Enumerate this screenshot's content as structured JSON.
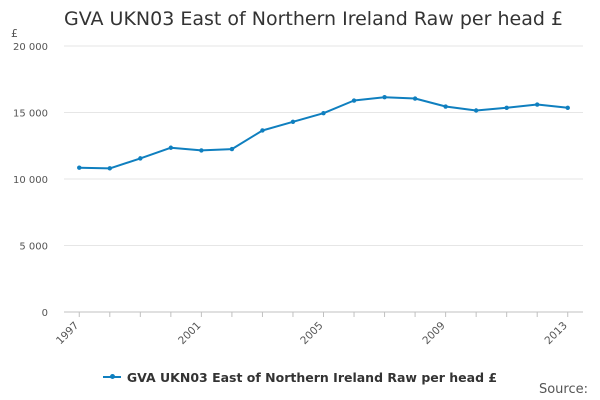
{
  "chart_data": {
    "type": "line",
    "title": "GVA UKN03 East of Northern Ireland Raw per head £",
    "ylabel": "£",
    "xlabel": "",
    "ylim": [
      0,
      20000
    ],
    "yticks": [
      0,
      5000,
      10000,
      15000,
      20000
    ],
    "ytick_labels": [
      "0",
      "5 000",
      "10 000",
      "15 000",
      "20 000"
    ],
    "xlim": [
      1997,
      2013
    ],
    "xticks": [
      1997,
      2001,
      2005,
      2009,
      2013
    ],
    "xtick_labels": [
      "1997",
      "2001",
      "2005",
      "2009",
      "2013"
    ],
    "grid": true,
    "legend_position": "bottom",
    "series": [
      {
        "name": "GVA UKN03 East of Northern Ireland Raw per head £",
        "color": "#0f7fbf",
        "x": [
          1997,
          1998,
          1999,
          2000,
          2001,
          2002,
          2003,
          2004,
          2005,
          2006,
          2007,
          2008,
          2009,
          2010,
          2011,
          2012,
          2013
        ],
        "values": [
          10850,
          10800,
          11550,
          12350,
          12150,
          12250,
          13650,
          14300,
          14950,
          15900,
          16150,
          16050,
          15450,
          15150,
          15350,
          15600,
          15350
        ]
      }
    ]
  },
  "footer": {
    "source_label": "Source:"
  }
}
